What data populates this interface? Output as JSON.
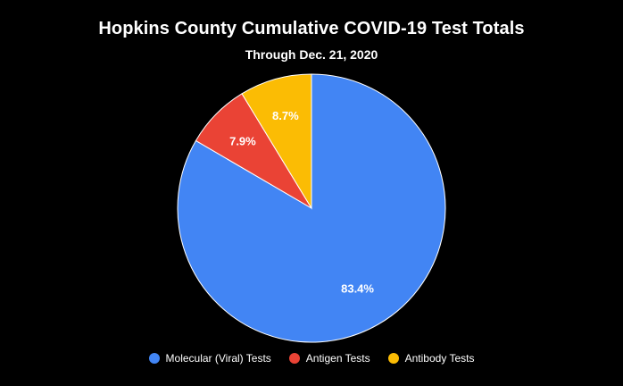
{
  "chart_data": {
    "type": "pie",
    "title": "Hopkins County Cumulative COVID-19 Test Totals",
    "subtitle": "Through Dec. 21, 2020",
    "start_angle_deg": 0,
    "slices": [
      {
        "label": "Molecular (Viral) Tests",
        "value": 83.4,
        "display": "83.4%",
        "color": "#4285f4"
      },
      {
        "label": "Antigen Tests",
        "value": 7.9,
        "display": "7.9%",
        "color": "#ea4335"
      },
      {
        "label": "Antibody Tests",
        "value": 8.7,
        "display": "8.7%",
        "color": "#fbbc04"
      }
    ],
    "legend_position": "bottom"
  },
  "legend": {
    "items": [
      {
        "label": "Molecular (Viral) Tests",
        "color": "#4285f4"
      },
      {
        "label": "Antigen Tests",
        "color": "#ea4335"
      },
      {
        "label": "Antibody Tests",
        "color": "#fbbc04"
      }
    ]
  },
  "colors": {
    "background": "#000000",
    "text": "#ffffff",
    "slice_border": "#ffffff"
  }
}
